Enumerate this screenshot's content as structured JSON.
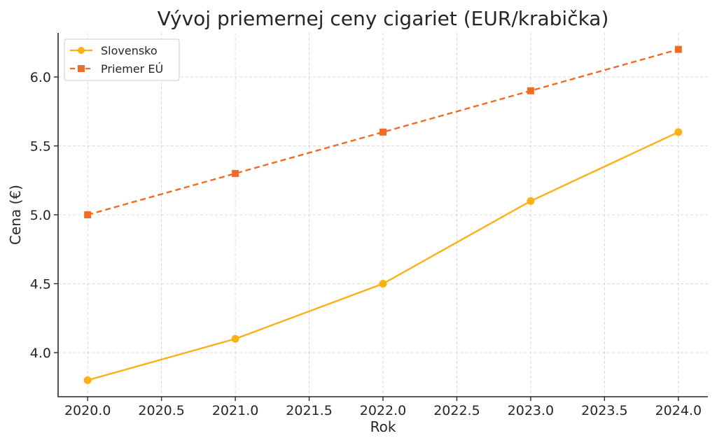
{
  "chart_data": {
    "type": "line",
    "title": "Vývoj priemernej ceny cigariet (EUR/krabička)",
    "xlabel": "Rok",
    "ylabel": "Cena (€)",
    "x": [
      2020,
      2021,
      2022,
      2023,
      2024
    ],
    "xlim": [
      2019.8,
      2024.2
    ],
    "ylim": [
      3.68,
      6.32
    ],
    "x_ticks": [
      2020.0,
      2020.5,
      2021.0,
      2021.5,
      2022.0,
      2022.5,
      2023.0,
      2023.5,
      2024.0
    ],
    "x_tick_labels": [
      "2020.0",
      "2020.5",
      "2021.0",
      "2021.5",
      "2022.0",
      "2022.5",
      "2023.0",
      "2023.5",
      "2024.0"
    ],
    "y_ticks": [
      4.0,
      4.5,
      5.0,
      5.5,
      6.0
    ],
    "y_tick_labels": [
      "4.0",
      "4.5",
      "5.0",
      "5.5",
      "6.0"
    ],
    "grid": true,
    "legend_position": "top-left",
    "series": [
      {
        "name": "Slovensko",
        "values": [
          3.8,
          4.1,
          4.5,
          5.1,
          5.6
        ],
        "color": "#fbb016",
        "line_style": "solid",
        "marker": "circle"
      },
      {
        "name": "Priemer EÚ",
        "values": [
          5.0,
          5.3,
          5.6,
          5.9,
          6.2
        ],
        "color": "#f26b22",
        "line_style": "dashed",
        "marker": "square"
      }
    ]
  }
}
